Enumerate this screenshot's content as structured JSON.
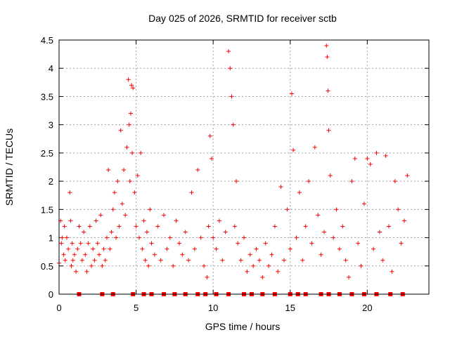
{
  "chart_data": {
    "type": "scatter",
    "title": "Day 025 of 2026, SRMTID for receiver sctb",
    "xlabel": "GPS time / hours",
    "ylabel": "SRMTID / TECUs",
    "xlim": [
      0,
      24
    ],
    "ylim": [
      0,
      4.5
    ],
    "xticks": [
      0,
      5,
      10,
      15,
      20
    ],
    "xtick_labels": [
      "0",
      "5",
      "10",
      "15",
      "20"
    ],
    "yticks": [
      0,
      0.5,
      1,
      1.5,
      2,
      2.5,
      3,
      3.5,
      4,
      4.5
    ],
    "ytick_labels": [
      "0",
      "0.5",
      "1",
      "1.5",
      "2",
      "2.5",
      "3",
      "3.5",
      "4",
      "4.5"
    ],
    "grid": true,
    "marker": "+",
    "color": "#ff0000",
    "series": [
      {
        "name": "SRMTID",
        "x": [
          0.0,
          0.1,
          0.15,
          0.2,
          0.3,
          0.35,
          0.4,
          0.5,
          0.6,
          0.7,
          0.75,
          0.8,
          0.85,
          0.9,
          1.0,
          1.1,
          1.2,
          1.3,
          1.4,
          1.5,
          1.6,
          1.7,
          1.8,
          1.9,
          2.0,
          2.1,
          2.2,
          2.3,
          2.4,
          2.5,
          2.6,
          2.7,
          2.8,
          2.9,
          3.0,
          3.1,
          3.2,
          3.3,
          3.4,
          3.5,
          3.6,
          3.7,
          3.8,
          3.9,
          4.0,
          4.1,
          4.2,
          4.3,
          4.4,
          4.5,
          4.55,
          4.6,
          4.65,
          4.7,
          4.75,
          4.8,
          4.9,
          5.0,
          5.1,
          5.2,
          5.3,
          5.4,
          5.5,
          5.6,
          5.7,
          5.8,
          5.9,
          6.0,
          6.2,
          6.4,
          6.6,
          6.8,
          7.0,
          7.2,
          7.4,
          7.6,
          7.8,
          8.0,
          8.2,
          8.4,
          8.6,
          8.8,
          9.0,
          9.2,
          9.4,
          9.6,
          9.7,
          9.8,
          9.9,
          10.0,
          10.2,
          10.4,
          10.6,
          10.8,
          11.0,
          11.1,
          11.2,
          11.3,
          11.4,
          11.5,
          11.6,
          11.8,
          12.0,
          12.2,
          12.4,
          12.6,
          12.8,
          13.0,
          13.2,
          13.4,
          13.6,
          13.8,
          14.0,
          14.2,
          14.4,
          14.6,
          14.8,
          15.0,
          15.1,
          15.2,
          15.4,
          15.6,
          15.8,
          16.0,
          16.2,
          16.4,
          16.6,
          16.8,
          17.0,
          17.2,
          17.35,
          17.4,
          17.45,
          17.5,
          17.6,
          17.8,
          18.0,
          18.2,
          18.4,
          18.6,
          18.8,
          19.0,
          19.2,
          19.4,
          19.6,
          19.8,
          20.0,
          20.2,
          20.4,
          20.6,
          20.8,
          21.0,
          21.2,
          21.4,
          21.6,
          21.8,
          22.0,
          22.2,
          22.4,
          22.6
        ],
        "y": [
          0.55,
          1.3,
          0.9,
          1.0,
          0.7,
          1.2,
          0.6,
          1.0,
          0.8,
          1.8,
          1.3,
          0.5,
          0.9,
          0.6,
          0.7,
          0.4,
          0.8,
          1.2,
          0.9,
          0.6,
          1.1,
          0.7,
          0.4,
          0.9,
          1.2,
          0.5,
          0.8,
          0.6,
          1.3,
          0.9,
          0.7,
          1.4,
          0.5,
          0.8,
          0.6,
          1.0,
          2.2,
          0.8,
          1.1,
          1.5,
          1.8,
          1.0,
          2.0,
          1.2,
          2.9,
          1.6,
          2.2,
          1.4,
          2.6,
          3.8,
          3.0,
          2.0,
          3.2,
          3.7,
          2.5,
          3.65,
          1.8,
          1.2,
          2.1,
          1.0,
          2.5,
          0.8,
          1.3,
          0.6,
          1.1,
          0.5,
          1.5,
          0.9,
          0.7,
          1.2,
          0.6,
          1.4,
          0.8,
          1.0,
          0.5,
          1.3,
          0.9,
          0.7,
          1.1,
          0.6,
          1.8,
          0.8,
          2.2,
          1.0,
          0.5,
          0.3,
          1.2,
          2.8,
          2.4,
          1.0,
          0.8,
          1.3,
          0.6,
          1.1,
          4.3,
          4.0,
          3.5,
          3.0,
          1.2,
          2.0,
          0.9,
          0.6,
          1.0,
          0.4,
          0.7,
          0.5,
          0.8,
          0.6,
          0.3,
          0.9,
          0.5,
          0.7,
          1.2,
          0.4,
          1.9,
          0.6,
          1.5,
          0.8,
          3.55,
          2.55,
          1.0,
          1.8,
          0.6,
          1.2,
          2.0,
          0.9,
          2.6,
          1.4,
          0.7,
          1.1,
          4.4,
          4.2,
          3.6,
          2.9,
          2.1,
          1.0,
          1.5,
          0.8,
          1.2,
          0.6,
          0.3,
          2.0,
          2.4,
          0.9,
          0.5,
          1.6,
          2.4,
          2.3,
          0.8,
          2.5,
          1.1,
          0.6,
          2.45,
          1.2,
          0.4,
          2.0,
          1.5,
          0.9,
          1.3,
          2.1
        ]
      }
    ],
    "zero_markers_x": [
      1.3,
      2.8,
      3.5,
      4.8,
      5.5,
      6.0,
      6.8,
      7.5,
      8.2,
      9.0,
      9.5,
      10.2,
      11.0,
      12.0,
      12.5,
      13.2,
      14.0,
      15.0,
      15.5,
      16.0,
      17.0,
      17.5,
      18.2,
      19.0,
      19.8,
      20.6,
      21.5,
      22.3
    ]
  }
}
